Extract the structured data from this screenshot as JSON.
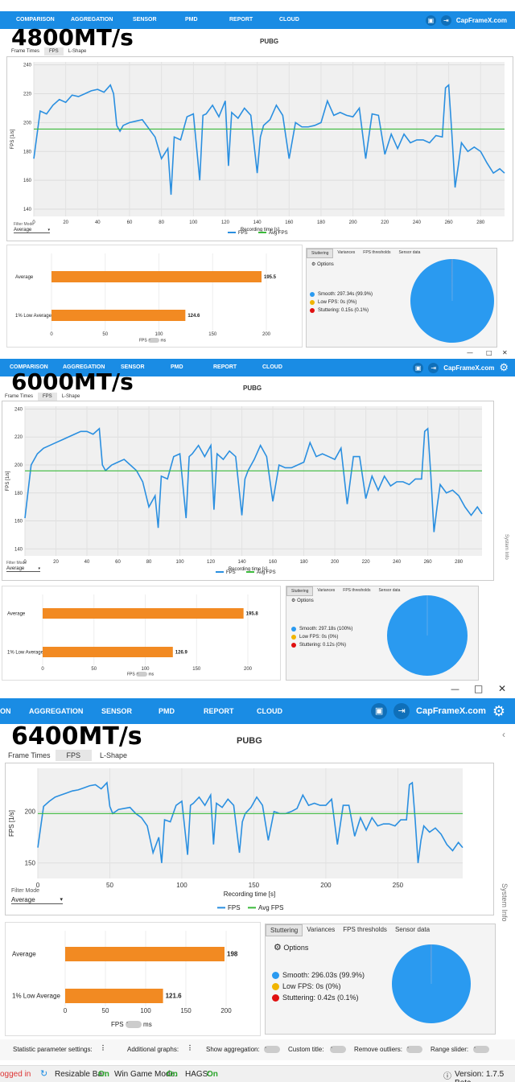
{
  "panels": [
    {
      "label": "4800MT/s",
      "game": "PUBG",
      "nav": {
        "items": [
          "COMPARISON",
          "AGGREGATION",
          "SENSOR",
          "PMD",
          "REPORT",
          "CLOUD"
        ],
        "brand": "CapFrameX.com"
      },
      "tabs": [
        "Frame Times",
        "FPS",
        "L-Shape"
      ],
      "selected_tab": "FPS",
      "filter_mode_label": "Filter Mode",
      "filter_mode_value": "Average",
      "chart": {
        "ylabel": "FPS [1/s]",
        "xlabel": "Recording time [s]",
        "yticks": [
          140,
          160,
          180,
          200,
          220,
          240
        ],
        "xticks": [
          0,
          20,
          40,
          60,
          80,
          100,
          120,
          140,
          160,
          180,
          200,
          220,
          240,
          260,
          280
        ],
        "legend_fps": "FPS",
        "legend_avg": "Avg FPS"
      },
      "bars": [
        {
          "label": "Average",
          "value": 195.5
        },
        {
          "label": "1% Low Average",
          "value": 124.6
        }
      ],
      "bar_xticks": [
        0,
        50,
        100,
        150,
        200
      ],
      "toggle_left": "FPS",
      "toggle_right": "ms",
      "stutter_tabs": [
        "Stuttering",
        "Variances",
        "FPS thresholds",
        "Sensor data"
      ],
      "options_label": "Options",
      "legend": [
        {
          "text": "Smooth: 297.34s (99.9%)",
          "color": "#2a9af0"
        },
        {
          "text": "Low FPS: 0s (0%)",
          "color": "#f0b400"
        },
        {
          "text": "Stuttering: 0.15s (0.1%)",
          "color": "#e01010"
        }
      ]
    },
    {
      "label": "6000MT/s",
      "game": "PUBG",
      "nav": {
        "items": [
          "COMPARISON",
          "AGGREGATION",
          "SENSOR",
          "PMD",
          "REPORT",
          "CLOUD"
        ],
        "brand": "CapFrameX.com"
      },
      "tabs": [
        "Frame Times",
        "FPS",
        "L-Shape"
      ],
      "selected_tab": "FPS",
      "filter_mode_label": "Filter Mode",
      "filter_mode_value": "Average",
      "side_info": "System Info",
      "chart": {
        "ylabel": "FPS [1/s]",
        "xlabel": "Recording time [s]",
        "yticks": [
          140,
          160,
          180,
          200,
          220,
          240
        ],
        "xticks": [
          0,
          20,
          40,
          60,
          80,
          100,
          120,
          140,
          160,
          180,
          200,
          220,
          240,
          260,
          280
        ],
        "legend_fps": "FPS",
        "legend_avg": "Avg FPS"
      },
      "bars": [
        {
          "label": "Average",
          "value": 195.8
        },
        {
          "label": "1% Low Average",
          "value": 126.9
        }
      ],
      "bar_xticks": [
        0,
        50,
        100,
        150,
        200
      ],
      "toggle_left": "FPS",
      "toggle_right": "ms",
      "stutter_tabs": [
        "Stuttering",
        "Variances",
        "FPS thresholds",
        "Sensor data"
      ],
      "options_label": "Options",
      "legend": [
        {
          "text": "Smooth: 297.18s (100%)",
          "color": "#2a9af0"
        },
        {
          "text": "Low FPS: 0s (0%)",
          "color": "#f0b400"
        },
        {
          "text": "Stuttering: 0.12s (0%)",
          "color": "#e01010"
        }
      ]
    },
    {
      "label": "6400MT/s",
      "game": "PUBG",
      "nav": {
        "items": [
          "ON",
          "AGGREGATION",
          "SENSOR",
          "PMD",
          "REPORT",
          "CLOUD"
        ],
        "brand": "CapFrameX.com"
      },
      "tabs": [
        "Frame Times",
        "FPS",
        "L-Shape"
      ],
      "selected_tab": "FPS",
      "filter_mode_label": "Filter Mode",
      "filter_mode_value": "Average",
      "side_info": "System Info",
      "chart": {
        "ylabel": "FPS [1/s]",
        "xlabel": "Recording time [s]",
        "yticks": [
          150,
          200
        ],
        "xticks": [
          0,
          50,
          100,
          150,
          200,
          250
        ],
        "legend_fps": "FPS",
        "legend_avg": "Avg FPS"
      },
      "bars": [
        {
          "label": "Average",
          "value": 198
        },
        {
          "label": "1% Low Average",
          "value": 121.6
        }
      ],
      "bar_xticks": [
        0,
        50,
        100,
        150,
        200
      ],
      "toggle_left": "FPS",
      "toggle_right": "ms",
      "stutter_tabs": [
        "Stuttering",
        "Variances",
        "FPS thresholds",
        "Sensor data"
      ],
      "options_label": "Options",
      "legend": [
        {
          "text": "Smooth: 296.03s (99.9%)",
          "color": "#2a9af0"
        },
        {
          "text": "Low FPS: 0s (0%)",
          "color": "#f0b400"
        },
        {
          "text": "Stuttering: 0.42s (0.1%)",
          "color": "#e01010"
        }
      ]
    }
  ],
  "bottom_settings": {
    "statistic": "Statistic parameter settings:",
    "additional": "Additional graphs:",
    "aggregation": "Show aggregation:",
    "custom_title": "Custom title:",
    "outliers": "Remove outliers:",
    "range_slider": "Range slider:"
  },
  "status_bar": {
    "logged": "ogged in",
    "resizable_bar": "Resizable Bar:",
    "resizable_bar_value": "On",
    "game_mode": "Win Game Mode:",
    "game_mode_value": "On",
    "hags": "HAGS:",
    "hags_value": "On",
    "version": "Version: 1.7.5 Beta"
  },
  "chart_data": [
    {
      "type": "line",
      "title": "PUBG",
      "xlabel": "Recording time [s]",
      "ylabel": "FPS [1/s]",
      "xlim": [
        0,
        295
      ],
      "ylim": [
        135,
        242
      ],
      "series": [
        {
          "name": "FPS",
          "x": [
            0,
            4,
            8,
            12,
            16,
            20,
            24,
            28,
            32,
            36,
            40,
            44,
            48,
            50,
            52,
            54,
            56,
            60,
            64,
            68,
            72,
            76,
            80,
            84,
            86,
            88,
            92,
            96,
            100,
            104,
            106,
            108,
            112,
            116,
            120,
            122,
            124,
            128,
            132,
            136,
            140,
            142,
            144,
            148,
            152,
            156,
            160,
            164,
            168,
            172,
            176,
            180,
            184,
            188,
            192,
            196,
            200,
            204,
            208,
            212,
            216,
            220,
            224,
            228,
            232,
            236,
            240,
            244,
            248,
            252,
            256,
            258,
            260,
            262,
            264,
            266,
            268,
            272,
            276,
            280,
            284,
            288,
            292,
            295
          ],
          "values": [
            175,
            208,
            206,
            212,
            216,
            214,
            219,
            218,
            220,
            222,
            223,
            221,
            226,
            220,
            198,
            194,
            198,
            200,
            201,
            202,
            196,
            190,
            175,
            182,
            150,
            190,
            188,
            204,
            206,
            160,
            205,
            206,
            212,
            204,
            215,
            170,
            207,
            203,
            210,
            205,
            165,
            190,
            198,
            202,
            212,
            205,
            175,
            200,
            197,
            197,
            198,
            200,
            215,
            205,
            207,
            205,
            204,
            210,
            175,
            206,
            205,
            178,
            192,
            182,
            192,
            186,
            188,
            188,
            186,
            191,
            190,
            224,
            226,
            192,
            155,
            170,
            186,
            180,
            183,
            180,
            172,
            165,
            168,
            165
          ]
        },
        {
          "name": "Avg FPS",
          "x": [
            0,
            295
          ],
          "values": [
            195.5,
            195.5
          ]
        }
      ]
    },
    {
      "type": "line",
      "title": "PUBG",
      "xlabel": "Recording time [s]",
      "ylabel": "FPS [1/s]",
      "xlim": [
        0,
        295
      ],
      "ylim": [
        135,
        242
      ],
      "series": [
        {
          "name": "FPS",
          "x": [
            0,
            4,
            8,
            12,
            16,
            20,
            24,
            28,
            32,
            36,
            40,
            44,
            48,
            50,
            52,
            54,
            56,
            60,
            64,
            68,
            72,
            76,
            80,
            84,
            86,
            88,
            92,
            96,
            100,
            104,
            106,
            108,
            112,
            116,
            120,
            122,
            124,
            128,
            132,
            136,
            140,
            142,
            144,
            148,
            152,
            156,
            160,
            164,
            168,
            172,
            176,
            180,
            184,
            188,
            192,
            196,
            200,
            204,
            208,
            212,
            216,
            220,
            224,
            228,
            232,
            236,
            240,
            244,
            248,
            252,
            256,
            258,
            260,
            262,
            264,
            266,
            268,
            272,
            276,
            280,
            284,
            288,
            292,
            295
          ],
          "values": [
            162,
            200,
            208,
            212,
            214,
            216,
            218,
            220,
            222,
            224,
            224,
            222,
            226,
            200,
            196,
            198,
            200,
            202,
            204,
            200,
            196,
            188,
            170,
            178,
            155,
            192,
            190,
            206,
            208,
            162,
            206,
            208,
            214,
            206,
            214,
            168,
            208,
            204,
            210,
            206,
            164,
            190,
            196,
            204,
            214,
            206,
            174,
            200,
            198,
            198,
            200,
            202,
            216,
            206,
            208,
            206,
            204,
            212,
            172,
            206,
            206,
            176,
            192,
            182,
            192,
            185,
            188,
            188,
            186,
            190,
            190,
            224,
            226,
            192,
            152,
            170,
            186,
            180,
            182,
            178,
            170,
            164,
            170,
            165
          ]
        },
        {
          "name": "Avg FPS",
          "x": [
            0,
            295
          ],
          "values": [
            195.8,
            195.8
          ]
        }
      ]
    },
    {
      "type": "line",
      "title": "PUBG",
      "xlabel": "Recording time [s]",
      "ylabel": "FPS [1/s]",
      "xlim": [
        0,
        295
      ],
      "ylim": [
        135,
        242
      ],
      "series": [
        {
          "name": "FPS",
          "x": [
            0,
            4,
            8,
            12,
            16,
            20,
            24,
            28,
            32,
            36,
            40,
            44,
            48,
            50,
            52,
            54,
            56,
            60,
            64,
            68,
            72,
            76,
            80,
            84,
            86,
            88,
            92,
            96,
            100,
            104,
            106,
            108,
            112,
            116,
            120,
            122,
            124,
            128,
            132,
            136,
            140,
            142,
            144,
            148,
            152,
            156,
            160,
            164,
            168,
            172,
            176,
            180,
            184,
            188,
            192,
            196,
            200,
            204,
            208,
            212,
            216,
            220,
            224,
            228,
            232,
            236,
            240,
            244,
            248,
            252,
            256,
            258,
            260,
            262,
            264,
            266,
            268,
            272,
            276,
            280,
            284,
            288,
            292,
            295
          ],
          "values": [
            165,
            205,
            210,
            214,
            216,
            218,
            220,
            221,
            223,
            225,
            226,
            222,
            228,
            205,
            198,
            200,
            202,
            203,
            204,
            198,
            194,
            186,
            160,
            175,
            150,
            192,
            190,
            206,
            210,
            158,
            206,
            208,
            214,
            206,
            216,
            168,
            208,
            204,
            212,
            206,
            160,
            190,
            198,
            204,
            214,
            206,
            172,
            200,
            198,
            198,
            200,
            203,
            216,
            206,
            208,
            206,
            206,
            212,
            168,
            206,
            206,
            176,
            194,
            182,
            194,
            186,
            188,
            188,
            186,
            192,
            192,
            226,
            228,
            192,
            150,
            172,
            186,
            180,
            184,
            178,
            168,
            162,
            170,
            165
          ]
        },
        {
          "name": "Avg FPS",
          "x": [
            0,
            295
          ],
          "values": [
            198,
            198
          ]
        }
      ]
    },
    {
      "type": "bar",
      "categories": [
        "Average",
        "1% Low Average"
      ],
      "values": [
        195.5,
        124.6
      ],
      "xlim": [
        0,
        200
      ]
    },
    {
      "type": "bar",
      "categories": [
        "Average",
        "1% Low Average"
      ],
      "values": [
        195.8,
        126.9
      ],
      "xlim": [
        0,
        200
      ]
    },
    {
      "type": "bar",
      "categories": [
        "Average",
        "1% Low Average"
      ],
      "values": [
        198,
        121.6
      ],
      "xlim": [
        0,
        200
      ]
    },
    {
      "type": "pie",
      "categories": [
        "Smooth",
        "Low FPS",
        "Stuttering"
      ],
      "values": [
        99.9,
        0,
        0.1
      ]
    },
    {
      "type": "pie",
      "categories": [
        "Smooth",
        "Low FPS",
        "Stuttering"
      ],
      "values": [
        100,
        0,
        0
      ]
    },
    {
      "type": "pie",
      "categories": [
        "Smooth",
        "Low FPS",
        "Stuttering"
      ],
      "values": [
        99.9,
        0,
        0.1
      ]
    }
  ]
}
